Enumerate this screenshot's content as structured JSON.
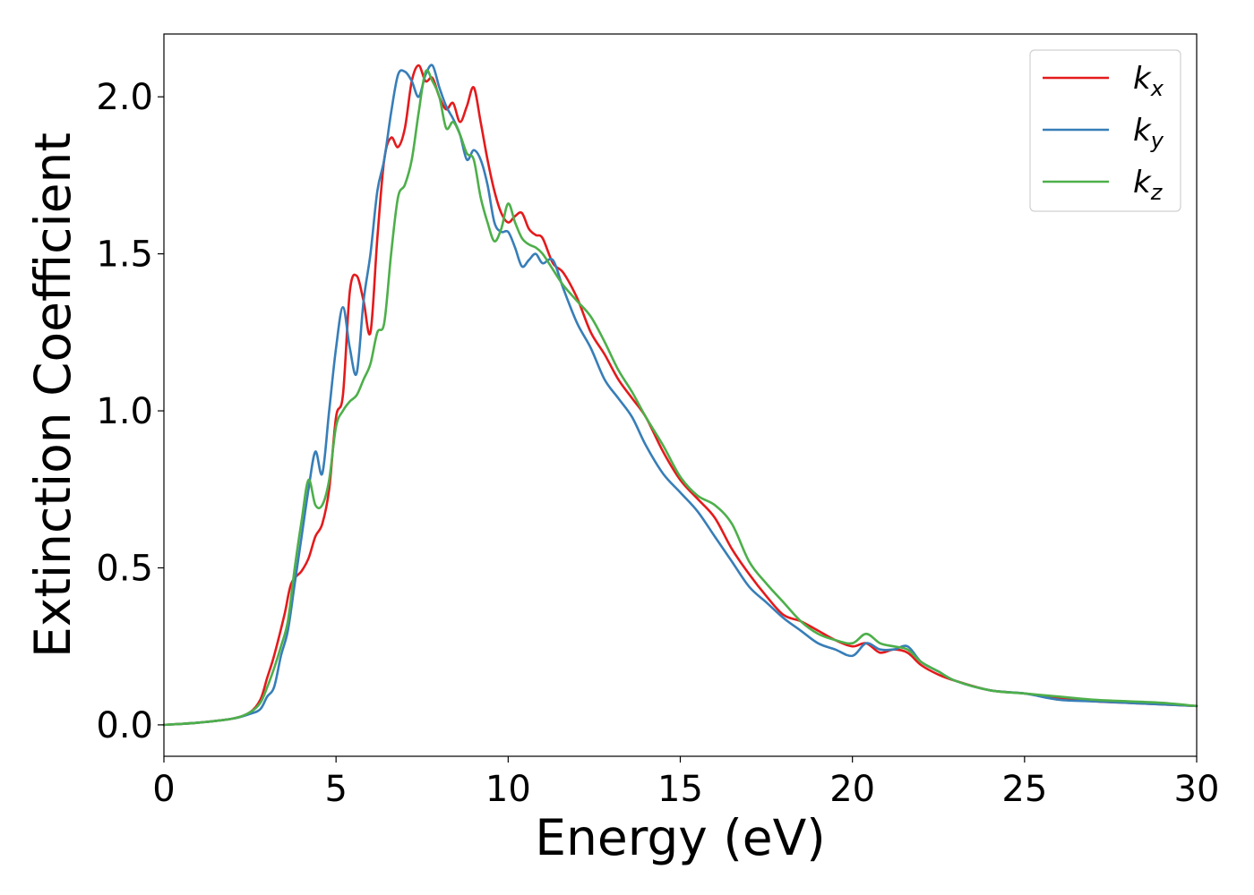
{
  "chart_data": {
    "type": "line",
    "xlabel": "Energy (eV)",
    "ylabel": "Extinction Coefficient",
    "xlim": [
      0,
      30
    ],
    "ylim": [
      -0.1,
      2.2
    ],
    "xticks": [
      0,
      5,
      10,
      15,
      20,
      25,
      30
    ],
    "xtick_labels": [
      "0",
      "5",
      "10",
      "15",
      "20",
      "25",
      "30"
    ],
    "yticks": [
      0.0,
      0.5,
      1.0,
      1.5,
      2.0
    ],
    "ytick_labels": [
      "0.0",
      "0.5",
      "1.0",
      "1.5",
      "2.0"
    ],
    "grid": false,
    "legend_position": "top-right",
    "series": [
      {
        "name": "k_x",
        "label_base": "k",
        "label_sub": "x",
        "color": "#e41a1c",
        "x": [
          0,
          1,
          2,
          2.5,
          2.8,
          3.0,
          3.2,
          3.5,
          3.7,
          4.0,
          4.2,
          4.4,
          4.6,
          4.8,
          5.0,
          5.2,
          5.4,
          5.6,
          5.8,
          6.0,
          6.2,
          6.4,
          6.6,
          6.8,
          7.0,
          7.2,
          7.4,
          7.6,
          7.8,
          8.0,
          8.2,
          8.4,
          8.6,
          8.8,
          9.0,
          9.2,
          9.4,
          9.6,
          9.8,
          10.0,
          10.2,
          10.4,
          10.6,
          10.8,
          11.0,
          11.3,
          11.6,
          12.0,
          12.4,
          12.8,
          13.2,
          13.6,
          14.0,
          14.5,
          15.0,
          15.5,
          16.0,
          16.5,
          17.0,
          17.5,
          18.0,
          18.5,
          19.0,
          19.5,
          20.0,
          20.4,
          20.8,
          21.2,
          21.6,
          22.0,
          22.5,
          23.0,
          24.0,
          25.0,
          26.0,
          27.0,
          28.0,
          29.0,
          30.0
        ],
        "y": [
          0.0,
          0.007,
          0.02,
          0.04,
          0.08,
          0.15,
          0.22,
          0.35,
          0.45,
          0.49,
          0.53,
          0.6,
          0.64,
          0.75,
          0.98,
          1.05,
          1.38,
          1.43,
          1.35,
          1.25,
          1.55,
          1.8,
          1.87,
          1.84,
          1.9,
          2.05,
          2.1,
          2.05,
          2.06,
          2.0,
          1.96,
          1.98,
          1.92,
          1.97,
          2.03,
          1.92,
          1.8,
          1.7,
          1.63,
          1.6,
          1.62,
          1.63,
          1.58,
          1.56,
          1.55,
          1.47,
          1.44,
          1.36,
          1.25,
          1.18,
          1.1,
          1.04,
          0.98,
          0.87,
          0.78,
          0.72,
          0.66,
          0.56,
          0.48,
          0.41,
          0.35,
          0.33,
          0.3,
          0.27,
          0.25,
          0.26,
          0.23,
          0.24,
          0.23,
          0.19,
          0.16,
          0.14,
          0.11,
          0.1,
          0.085,
          0.075,
          0.07,
          0.065,
          0.06
        ]
      },
      {
        "name": "k_y",
        "label_base": "k",
        "label_sub": "y",
        "color": "#377eb8",
        "x": [
          0,
          1,
          2,
          2.5,
          2.8,
          3.0,
          3.2,
          3.4,
          3.6,
          3.8,
          4.0,
          4.2,
          4.4,
          4.6,
          4.8,
          5.0,
          5.2,
          5.4,
          5.6,
          5.8,
          6.0,
          6.2,
          6.4,
          6.6,
          6.8,
          7.0,
          7.2,
          7.4,
          7.6,
          7.8,
          8.0,
          8.2,
          8.4,
          8.6,
          8.8,
          9.0,
          9.2,
          9.4,
          9.6,
          9.8,
          10.0,
          10.2,
          10.4,
          10.6,
          10.8,
          11.0,
          11.3,
          11.6,
          12.0,
          12.4,
          12.8,
          13.2,
          13.6,
          14.0,
          14.5,
          15.0,
          15.5,
          16.0,
          16.5,
          17.0,
          17.5,
          18.0,
          18.5,
          19.0,
          19.5,
          20.0,
          20.4,
          20.8,
          21.2,
          21.6,
          22.0,
          22.5,
          23.0,
          24.0,
          25.0,
          26.0,
          27.0,
          28.0,
          29.0,
          30.0
        ],
        "y": [
          0.0,
          0.007,
          0.02,
          0.035,
          0.05,
          0.09,
          0.12,
          0.22,
          0.3,
          0.45,
          0.6,
          0.75,
          0.87,
          0.8,
          1.0,
          1.2,
          1.33,
          1.2,
          1.12,
          1.35,
          1.5,
          1.7,
          1.8,
          1.95,
          2.07,
          2.08,
          2.05,
          2.0,
          2.07,
          2.1,
          2.03,
          1.97,
          1.93,
          1.88,
          1.8,
          1.83,
          1.8,
          1.72,
          1.6,
          1.57,
          1.57,
          1.52,
          1.46,
          1.48,
          1.5,
          1.47,
          1.48,
          1.39,
          1.28,
          1.2,
          1.1,
          1.04,
          0.98,
          0.89,
          0.8,
          0.74,
          0.68,
          0.6,
          0.52,
          0.44,
          0.39,
          0.34,
          0.3,
          0.26,
          0.24,
          0.22,
          0.26,
          0.24,
          0.24,
          0.25,
          0.2,
          0.17,
          0.14,
          0.11,
          0.1,
          0.08,
          0.075,
          0.07,
          0.065,
          0.06
        ]
      },
      {
        "name": "k_z",
        "label_base": "k",
        "label_sub": "z",
        "color": "#4daf4a",
        "x": [
          0,
          1,
          2,
          2.5,
          2.8,
          3.0,
          3.2,
          3.4,
          3.6,
          3.8,
          4.0,
          4.2,
          4.4,
          4.6,
          4.8,
          5.0,
          5.2,
          5.4,
          5.6,
          5.8,
          6.0,
          6.2,
          6.4,
          6.6,
          6.8,
          7.0,
          7.2,
          7.4,
          7.6,
          7.8,
          8.0,
          8.2,
          8.4,
          8.6,
          8.8,
          9.0,
          9.2,
          9.4,
          9.6,
          9.8,
          10.0,
          10.2,
          10.4,
          10.6,
          10.8,
          11.0,
          11.3,
          11.6,
          12.0,
          12.4,
          12.8,
          13.2,
          13.6,
          14.0,
          14.5,
          15.0,
          15.5,
          16.0,
          16.5,
          17.0,
          17.5,
          18.0,
          18.5,
          19.0,
          19.5,
          20.0,
          20.4,
          20.8,
          21.2,
          21.6,
          22.0,
          22.5,
          23.0,
          24.0,
          25.0,
          26.0,
          27.0,
          28.0,
          29.0,
          30.0
        ],
        "y": [
          0.0,
          0.007,
          0.02,
          0.04,
          0.07,
          0.12,
          0.18,
          0.25,
          0.33,
          0.5,
          0.65,
          0.78,
          0.7,
          0.7,
          0.78,
          0.95,
          1.0,
          1.03,
          1.05,
          1.1,
          1.15,
          1.25,
          1.28,
          1.5,
          1.68,
          1.72,
          1.8,
          1.95,
          2.08,
          2.05,
          2.0,
          1.9,
          1.92,
          1.88,
          1.82,
          1.8,
          1.68,
          1.6,
          1.54,
          1.58,
          1.66,
          1.6,
          1.55,
          1.53,
          1.52,
          1.5,
          1.45,
          1.4,
          1.35,
          1.3,
          1.22,
          1.13,
          1.06,
          0.98,
          0.89,
          0.79,
          0.73,
          0.7,
          0.64,
          0.52,
          0.45,
          0.39,
          0.33,
          0.29,
          0.27,
          0.26,
          0.29,
          0.26,
          0.25,
          0.24,
          0.2,
          0.17,
          0.14,
          0.11,
          0.1,
          0.09,
          0.08,
          0.075,
          0.07,
          0.06
        ]
      }
    ]
  }
}
